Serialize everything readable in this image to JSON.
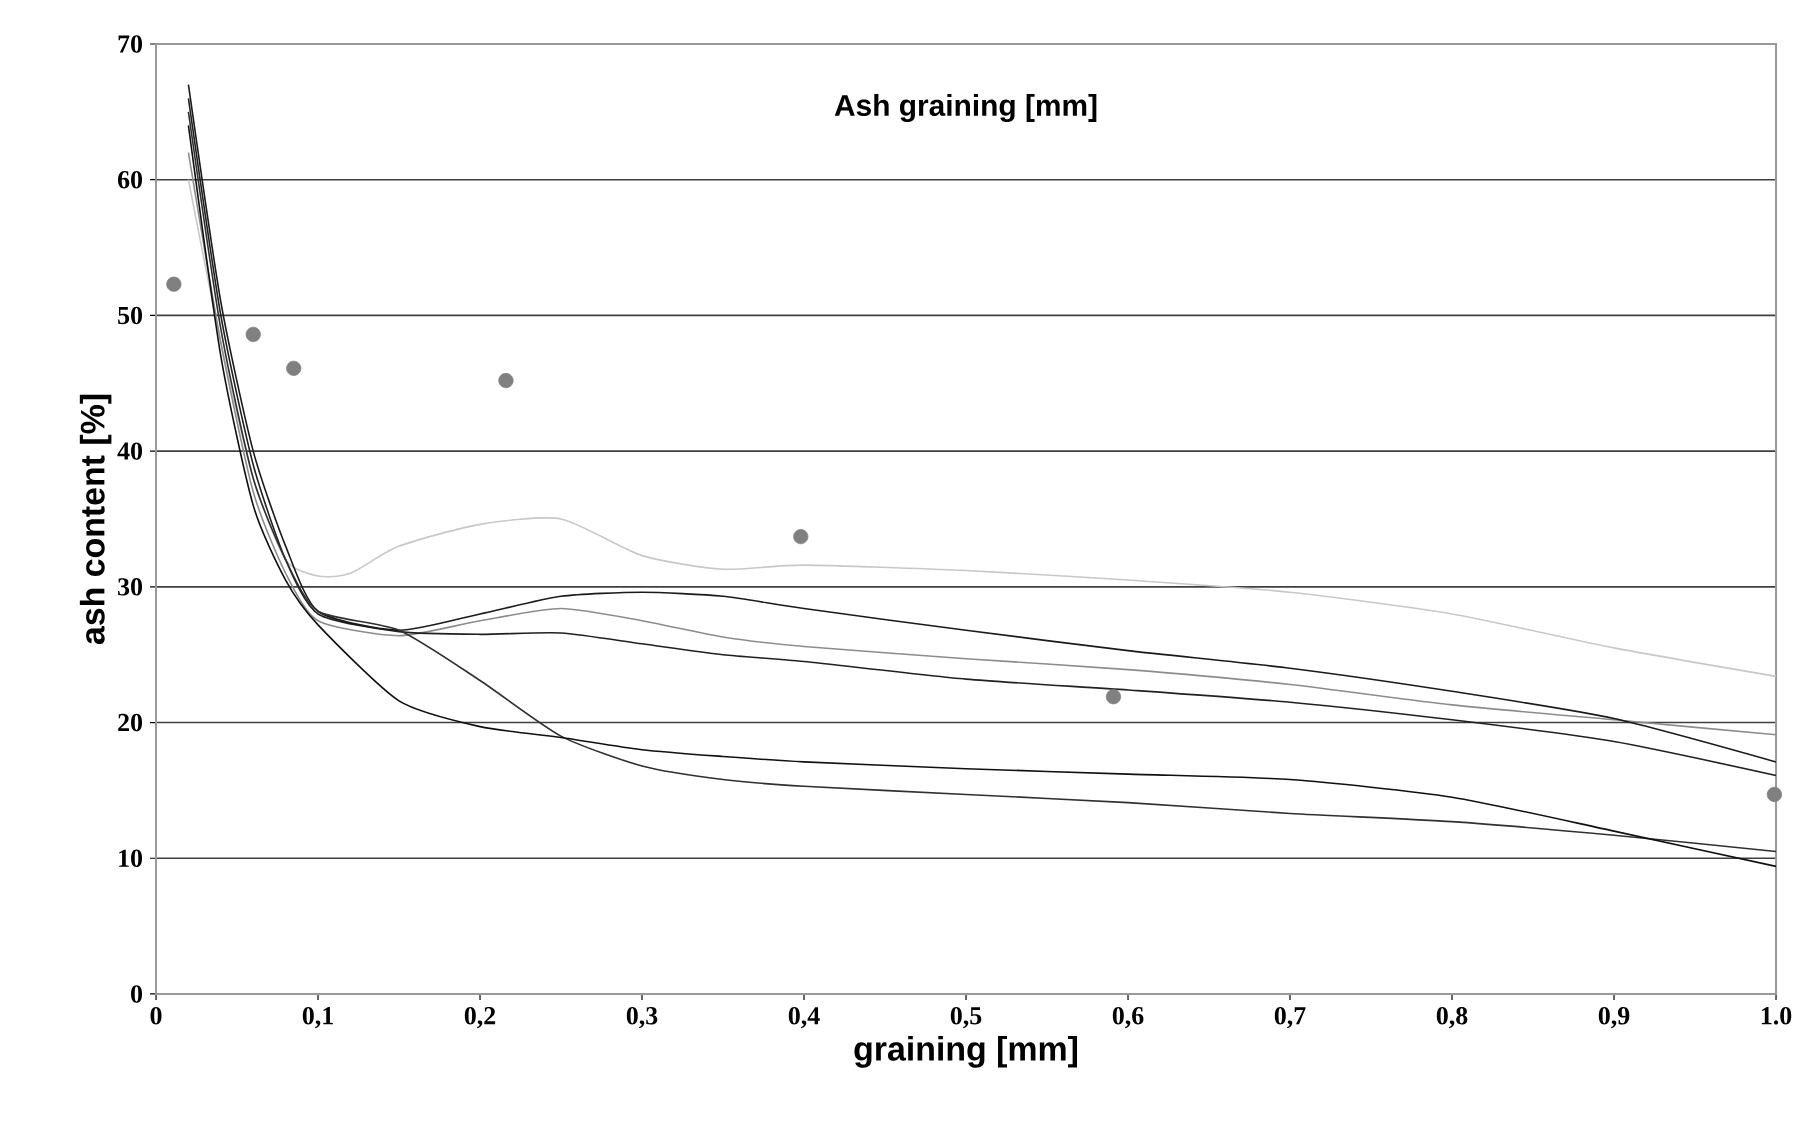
{
  "chart_data": {
    "type": "line",
    "title": "Ash graining [mm]",
    "xlabel": "graining [mm]",
    "ylabel": "ash content [%]",
    "xlim": [
      0,
      1.0
    ],
    "ylim": [
      0,
      70
    ],
    "xticks": [
      0,
      {
        "value": 0.1,
        "label": "0,1"
      },
      {
        "value": 0.2,
        "label": "0,2"
      },
      {
        "value": 0.3,
        "label": "0,3"
      },
      {
        "value": 0.4,
        "label": "0,4"
      },
      {
        "value": 0.5,
        "label": "0,5"
      },
      {
        "value": 0.6,
        "label": "0,6"
      },
      {
        "value": 0.7,
        "label": "0,7"
      },
      {
        "value": 0.8,
        "label": "0,8"
      },
      {
        "value": 0.9,
        "label": "0,9"
      },
      {
        "value": 1.0,
        "label": "1.0"
      }
    ],
    "yticks": [
      0,
      10,
      20,
      30,
      40,
      50,
      60,
      70
    ],
    "grid": "y",
    "line_style": "solid",
    "series": [
      {
        "color": "#c8c8c8",
        "x": [
          0.02,
          0.04,
          0.06,
          0.08,
          0.1,
          0.12,
          0.15,
          0.2,
          0.25,
          0.3,
          0.35,
          0.4,
          0.5,
          0.6,
          0.7,
          0.8,
          0.9,
          1.0
        ],
        "values": [
          60,
          48,
          38,
          32,
          30.8,
          31,
          33,
          34.6,
          35,
          32.3,
          31.3,
          31.6,
          31.2,
          30.5,
          29.6,
          28,
          25.5,
          23.4
        ]
      },
      {
        "color": "#8c8c8c",
        "x": [
          0.02,
          0.04,
          0.06,
          0.08,
          0.1,
          0.15,
          0.2,
          0.25,
          0.3,
          0.35,
          0.4,
          0.5,
          0.6,
          0.7,
          0.8,
          0.9,
          1.0
        ],
        "values": [
          62,
          48,
          37,
          31,
          27.5,
          26.4,
          27.5,
          28.4,
          27.5,
          26.3,
          25.6,
          24.7,
          23.9,
          22.8,
          21.3,
          20.2,
          19.1
        ]
      },
      {
        "color": "#202020",
        "x": [
          0.02,
          0.04,
          0.06,
          0.08,
          0.1,
          0.15,
          0.2,
          0.25,
          0.3,
          0.35,
          0.4,
          0.5,
          0.6,
          0.7,
          0.8,
          0.9,
          1.0
        ],
        "values": [
          66,
          50,
          39,
          32,
          28,
          26.7,
          26.5,
          26.6,
          25.8,
          25,
          24.5,
          23.2,
          22.4,
          21.5,
          20.2,
          18.6,
          16.1
        ]
      },
      {
        "color": "#1a1a1a",
        "x": [
          0.02,
          0.04,
          0.06,
          0.08,
          0.1,
          0.15,
          0.2,
          0.25,
          0.3,
          0.35,
          0.4,
          0.5,
          0.6,
          0.7,
          0.8,
          0.9,
          1.0
        ],
        "values": [
          67,
          51,
          40,
          33,
          28.2,
          26.8,
          28,
          29.3,
          29.6,
          29.3,
          28.4,
          26.8,
          25.3,
          24,
          22.3,
          20.3,
          17.1
        ]
      },
      {
        "color": "#303030",
        "x": [
          0.02,
          0.04,
          0.06,
          0.08,
          0.1,
          0.15,
          0.2,
          0.25,
          0.3,
          0.35,
          0.4,
          0.5,
          0.6,
          0.7,
          0.8,
          0.9,
          1.0
        ],
        "values": [
          65,
          49,
          38,
          32,
          28.2,
          26.8,
          23.1,
          19,
          16.8,
          15.8,
          15.3,
          14.7,
          14.1,
          13.3,
          12.7,
          11.7,
          10.5
        ]
      },
      {
        "color": "#101010",
        "x": [
          0.02,
          0.04,
          0.06,
          0.08,
          0.1,
          0.15,
          0.2,
          0.25,
          0.3,
          0.35,
          0.4,
          0.5,
          0.6,
          0.7,
          0.8,
          0.9,
          1.0
        ],
        "values": [
          64,
          47,
          36,
          30.5,
          27.2,
          21.6,
          19.7,
          18.9,
          18,
          17.5,
          17.1,
          16.6,
          16.2,
          15.8,
          14.5,
          12,
          9.4
        ]
      },
      {
        "type": "scatter",
        "color": "#808080",
        "marker": "circle",
        "x": [
          0.011,
          0.06,
          0.085,
          0.216,
          0.398,
          0.591,
          0.999
        ],
        "values": [
          52.3,
          48.6,
          46.1,
          45.2,
          33.7,
          21.9,
          14.7
        ]
      }
    ]
  }
}
